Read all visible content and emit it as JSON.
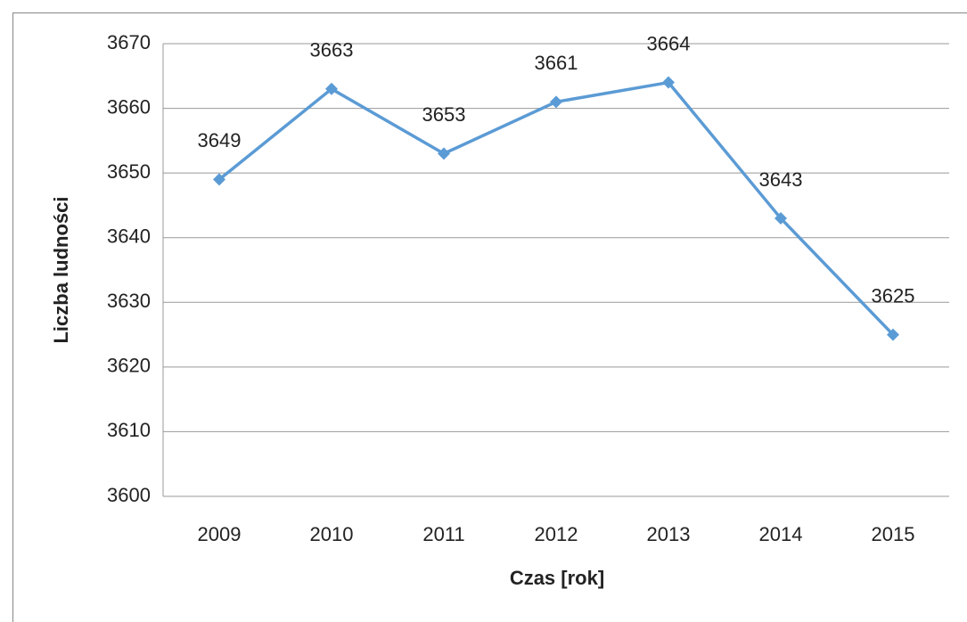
{
  "chart_data": {
    "type": "line",
    "x_label": "Czas [rok]",
    "y_label": "Liczba ludności",
    "categories": [
      "2009",
      "2010",
      "2011",
      "2012",
      "2013",
      "2014",
      "2015"
    ],
    "series": [
      {
        "name": "Liczba ludności",
        "color": "#5b9bd5",
        "values": [
          3649,
          3663,
          3653,
          3661,
          3664,
          3643,
          3625
        ]
      }
    ],
    "ylim": [
      3600,
      3670
    ],
    "yticks": [
      3600,
      3610,
      3620,
      3630,
      3640,
      3650,
      3660,
      3670
    ],
    "grid": true,
    "data_labels": true,
    "marker": "diamond"
  }
}
